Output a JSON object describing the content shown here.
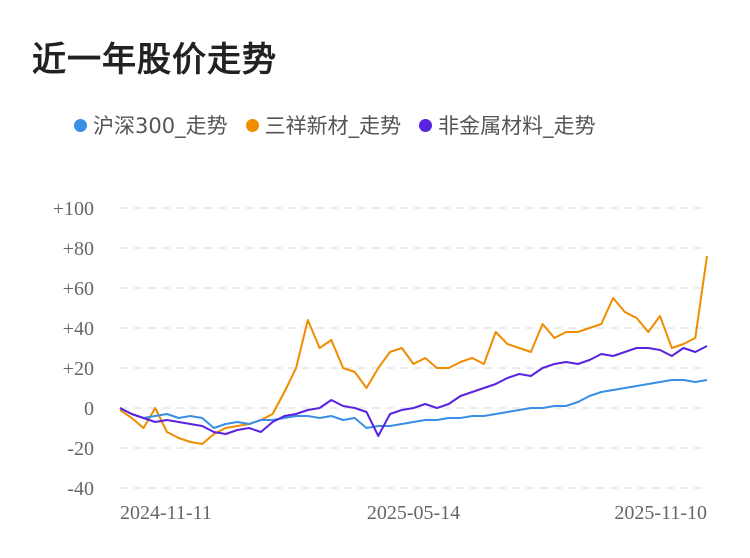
{
  "title": "近一年股价走势",
  "legend": [
    {
      "name": "沪深300_走势",
      "color": "#3a8ee6"
    },
    {
      "name": "三祥新材_走势",
      "color": "#f08c00"
    },
    {
      "name": "非金属材料_走势",
      "color": "#5a23e0"
    }
  ],
  "chart_data": {
    "type": "line",
    "title": "近一年股价走势",
    "xlabel": "",
    "ylabel": "",
    "ylim": [
      -40,
      100
    ],
    "yticks": [
      "+100",
      "+80",
      "+60",
      "+40",
      "+20",
      "0",
      "-20",
      "-40"
    ],
    "ytick_values": [
      100,
      80,
      60,
      40,
      20,
      0,
      -20,
      -40
    ],
    "xticks": [
      "2024-11-11",
      "2025-05-14",
      "2025-11-10"
    ],
    "xtick_positions": [
      0,
      0.5,
      1
    ],
    "grid": true,
    "legend_position": "top",
    "series": [
      {
        "name": "沪深300_走势",
        "color": "#3a8ee6",
        "x": [
          0,
          0.02,
          0.04,
          0.06,
          0.08,
          0.1,
          0.12,
          0.14,
          0.16,
          0.18,
          0.2,
          0.22,
          0.24,
          0.26,
          0.28,
          0.3,
          0.32,
          0.34,
          0.36,
          0.38,
          0.4,
          0.42,
          0.44,
          0.46,
          0.48,
          0.5,
          0.52,
          0.54,
          0.56,
          0.58,
          0.6,
          0.62,
          0.64,
          0.66,
          0.68,
          0.7,
          0.72,
          0.74,
          0.76,
          0.78,
          0.8,
          0.82,
          0.84,
          0.86,
          0.88,
          0.9,
          0.92,
          0.94,
          0.96,
          0.98,
          1
        ],
        "values": [
          0,
          -3,
          -5,
          -4,
          -3,
          -5,
          -4,
          -5,
          -10,
          -8,
          -7,
          -8,
          -6,
          -6,
          -5,
          -4,
          -4,
          -5,
          -4,
          -6,
          -5,
          -10,
          -9,
          -9,
          -8,
          -7,
          -6,
          -6,
          -5,
          -5,
          -4,
          -4,
          -3,
          -2,
          -1,
          0,
          0,
          1,
          1,
          3,
          6,
          8,
          9,
          10,
          11,
          12,
          13,
          14,
          14,
          13,
          14
        ]
      },
      {
        "name": "三祥新材_走势",
        "color": "#f08c00",
        "x": [
          0,
          0.02,
          0.04,
          0.06,
          0.08,
          0.1,
          0.12,
          0.14,
          0.16,
          0.18,
          0.2,
          0.22,
          0.24,
          0.26,
          0.28,
          0.3,
          0.32,
          0.34,
          0.36,
          0.38,
          0.4,
          0.42,
          0.44,
          0.46,
          0.48,
          0.5,
          0.52,
          0.54,
          0.56,
          0.58,
          0.6,
          0.62,
          0.64,
          0.66,
          0.68,
          0.7,
          0.72,
          0.74,
          0.76,
          0.78,
          0.8,
          0.82,
          0.84,
          0.86,
          0.88,
          0.9,
          0.92,
          0.94,
          0.96,
          0.98,
          1
        ],
        "values": [
          -1,
          -5,
          -10,
          0,
          -12,
          -15,
          -17,
          -18,
          -13,
          -10,
          -9,
          -8,
          -6,
          -3,
          8,
          20,
          44,
          30,
          34,
          20,
          18,
          10,
          20,
          28,
          30,
          22,
          25,
          20,
          20,
          23,
          25,
          22,
          38,
          32,
          30,
          28,
          42,
          35,
          38,
          38,
          40,
          42,
          55,
          48,
          45,
          38,
          46,
          30,
          32,
          35,
          76
        ]
      },
      {
        "name": "非金属材料_走势",
        "color": "#5a23e0",
        "x": [
          0,
          0.02,
          0.04,
          0.06,
          0.08,
          0.1,
          0.12,
          0.14,
          0.16,
          0.18,
          0.2,
          0.22,
          0.24,
          0.26,
          0.28,
          0.3,
          0.32,
          0.34,
          0.36,
          0.38,
          0.4,
          0.42,
          0.44,
          0.46,
          0.48,
          0.5,
          0.52,
          0.54,
          0.56,
          0.58,
          0.6,
          0.62,
          0.64,
          0.66,
          0.68,
          0.7,
          0.72,
          0.74,
          0.76,
          0.78,
          0.8,
          0.82,
          0.84,
          0.86,
          0.88,
          0.9,
          0.92,
          0.94,
          0.96,
          0.98,
          1
        ],
        "values": [
          0,
          -3,
          -5,
          -7,
          -6,
          -7,
          -8,
          -9,
          -12,
          -13,
          -11,
          -10,
          -12,
          -7,
          -4,
          -3,
          -1,
          0,
          4,
          1,
          0,
          -2,
          -14,
          -3,
          -1,
          0,
          2,
          0,
          2,
          6,
          8,
          10,
          12,
          15,
          17,
          16,
          20,
          22,
          23,
          22,
          24,
          27,
          26,
          28,
          30,
          30,
          29,
          26,
          30,
          28,
          31
        ]
      }
    ]
  }
}
